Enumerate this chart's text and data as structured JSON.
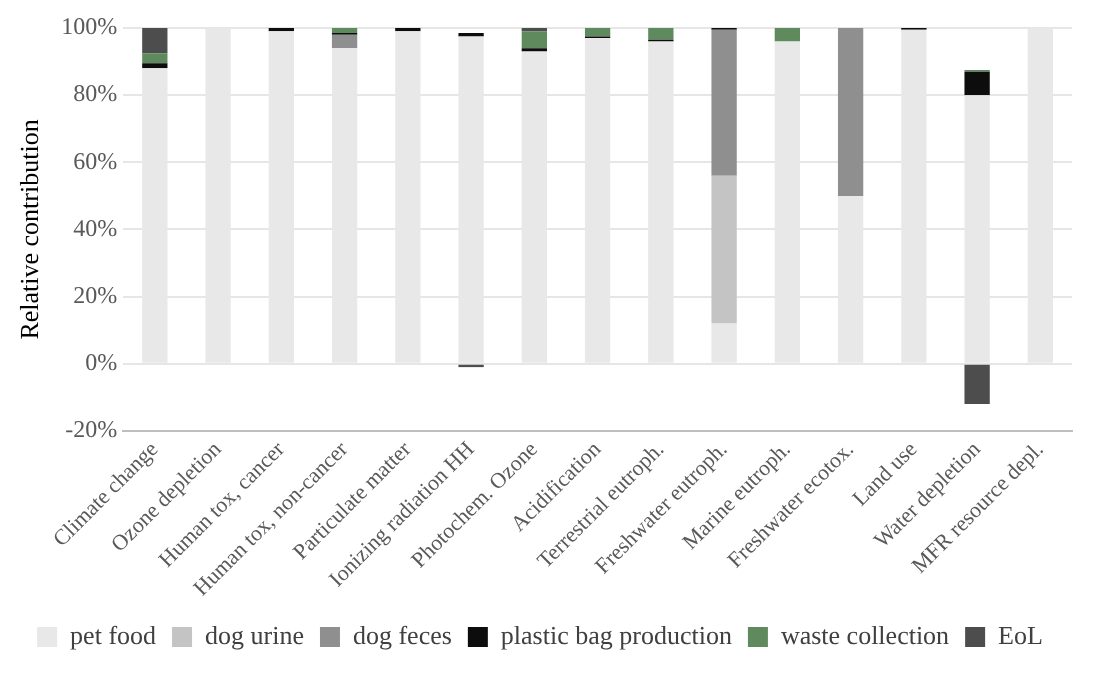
{
  "chart_data": {
    "type": "bar",
    "ylabel": "Relative contribution",
    "stacked": true,
    "grid": "y",
    "legend": "bottom",
    "categories": [
      "Climate change",
      "Ozone depletion",
      "Human tox, cancer",
      "Human tox, non-cancer",
      "Particulate matter",
      "Ionizing radiation HH",
      "Photochem. Ozone",
      "Acidification",
      "Terrestrial eutroph.",
      "Freshwater eutroph.",
      "Marine eutroph.",
      "Freshwater ecotox.",
      "Land use",
      "Water depletion",
      "MFR resource depl."
    ],
    "ylim": [
      -20,
      100
    ],
    "yticks": [
      {
        "value": -20,
        "label": "-20%"
      },
      {
        "value": 0,
        "label": "0%"
      },
      {
        "value": 20,
        "label": "20%"
      },
      {
        "value": 40,
        "label": "40%"
      },
      {
        "value": 60,
        "label": "60%"
      },
      {
        "value": 80,
        "label": "80%"
      },
      {
        "value": 100,
        "label": "100%"
      }
    ],
    "series": [
      {
        "name": "pet food",
        "color": "#e8e8e8",
        "values": [
          88,
          100,
          99,
          94,
          99,
          97.5,
          93,
          97,
          96,
          12,
          96,
          50,
          99.5,
          80,
          100
        ]
      },
      {
        "name": "dog urine",
        "color": "#c4c4c4",
        "values": [
          null,
          null,
          null,
          null,
          null,
          null,
          null,
          null,
          null,
          44,
          null,
          null,
          null,
          null,
          null
        ]
      },
      {
        "name": "dog feces",
        "color": "#8f8f8f",
        "values": [
          null,
          null,
          null,
          4,
          null,
          null,
          null,
          null,
          null,
          43.5,
          null,
          50,
          null,
          null,
          null
        ]
      },
      {
        "name": "plastic bag production",
        "color": "#0d0d0d",
        "values": [
          1.5,
          null,
          1,
          0.5,
          1,
          1,
          1,
          0.5,
          0.5,
          0.5,
          null,
          null,
          0.5,
          7,
          null
        ]
      },
      {
        "name": "waste collection",
        "color": "#5e8a5e",
        "values": [
          3,
          null,
          null,
          1.5,
          null,
          null,
          5,
          2.5,
          3.5,
          null,
          4,
          null,
          null,
          0.5,
          null
        ]
      },
      {
        "name": "EoL",
        "color": "#4d4d4d",
        "values": [
          7.5,
          null,
          null,
          null,
          null,
          -1,
          1,
          null,
          null,
          null,
          null,
          null,
          null,
          -12,
          null
        ]
      }
    ]
  }
}
